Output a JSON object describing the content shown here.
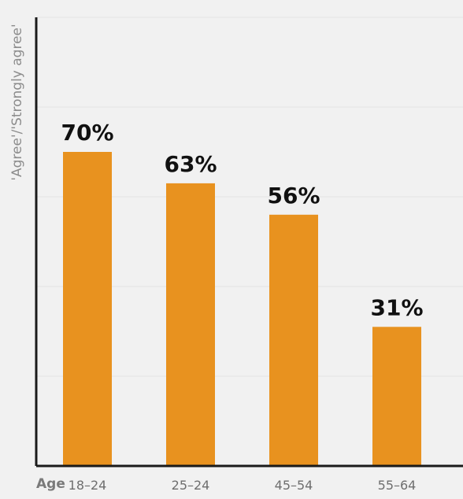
{
  "chart_data": {
    "type": "bar",
    "title": "",
    "xlabel": "Age",
    "ylabel": "'Agree'/'Strongly agree'",
    "categories": [
      "18-24",
      "25-24",
      "45-54",
      "55-64"
    ],
    "values": [
      70,
      63,
      56,
      31
    ],
    "data_labels": [
      "70%",
      "63%",
      "56%",
      "31%"
    ],
    "ylim": [
      0,
      100
    ],
    "grid": true,
    "colors": {
      "bar": "#e8921f",
      "grid": "#e2e2e2",
      "axis": "#1a1a1a",
      "tick_text": "#6e6e6e",
      "data_label": "#111111"
    }
  }
}
